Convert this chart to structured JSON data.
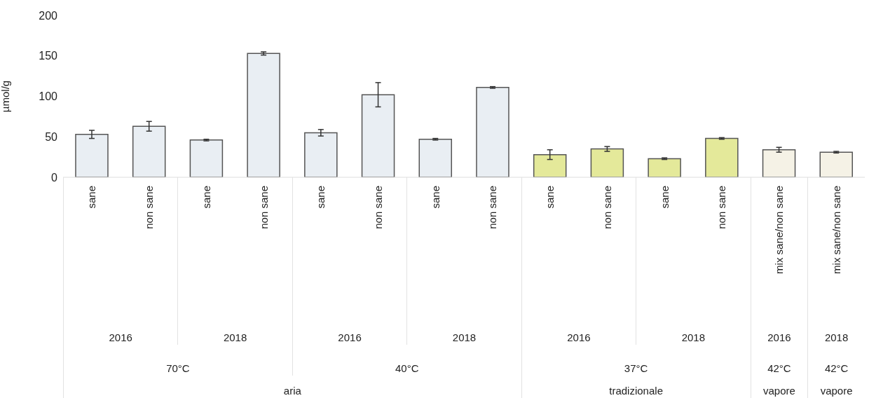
{
  "chart_data": {
    "type": "bar",
    "ylabel": "µmol/g",
    "categories": [
      "sane",
      "non sane",
      "sane",
      "non sane",
      "sane",
      "non sane",
      "sane",
      "non sane",
      "sane",
      "non sane",
      "sane",
      "non sane",
      "mix sane/non sane",
      "mix sane/non sane"
    ],
    "values": [
      53,
      63,
      46,
      153,
      55,
      102,
      47,
      111,
      28,
      35,
      23,
      48,
      34,
      31
    ],
    "errors": [
      5,
      6,
      1,
      2,
      4,
      15,
      1,
      1,
      6,
      3,
      1,
      1,
      3,
      1
    ],
    "colors": [
      "#e9eef3",
      "#e9eef3",
      "#e9eef3",
      "#e9eef3",
      "#e9eef3",
      "#e9eef3",
      "#e9eef3",
      "#e9eef3",
      "#e4e99a",
      "#e4e99a",
      "#e4e99a",
      "#e4e99a",
      "#f5f2e6",
      "#f5f2e6"
    ],
    "ylim": [
      0,
      200
    ],
    "yticks": [
      0,
      50,
      100,
      150,
      200
    ],
    "grid": false,
    "legend": false,
    "annotations": [
      "2016",
      "2018",
      "2016",
      "2018",
      "2016",
      "2018",
      "2016",
      "2018",
      "70°C",
      "40°C",
      "37°C",
      "42°C",
      "42°C",
      "aria",
      "tradizionale",
      "vapore",
      "vapore"
    ]
  }
}
